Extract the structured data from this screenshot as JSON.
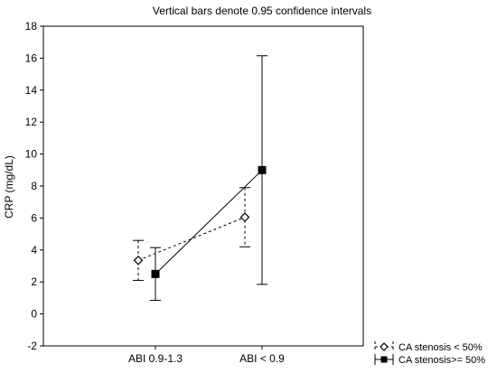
{
  "chart_data": {
    "type": "line",
    "title": "Vertical bars denote 0.95 confidence intervals",
    "xlabel": "",
    "ylabel": "CRP (mg/dL)",
    "categories": [
      "ABI 0.9-1.3",
      "ABI < 0.9"
    ],
    "ylim": [
      -2,
      18
    ],
    "yticks": [
      -2,
      0,
      2,
      4,
      6,
      8,
      10,
      12,
      14,
      16,
      18
    ],
    "grid": false,
    "legend_position": "bottom-right",
    "series": [
      {
        "name": "CA stenosis < 50%",
        "marker": "diamond-open",
        "line": "dashed",
        "values": [
          3.35,
          6.05
        ],
        "ci_low": [
          2.1,
          4.2
        ],
        "ci_high": [
          4.6,
          7.9
        ]
      },
      {
        "name": "CA stenosis>= 50%",
        "marker": "square-filled",
        "line": "solid",
        "values": [
          2.5,
          9.0
        ],
        "ci_low": [
          0.85,
          1.85
        ],
        "ci_high": [
          4.15,
          16.15
        ]
      }
    ]
  }
}
